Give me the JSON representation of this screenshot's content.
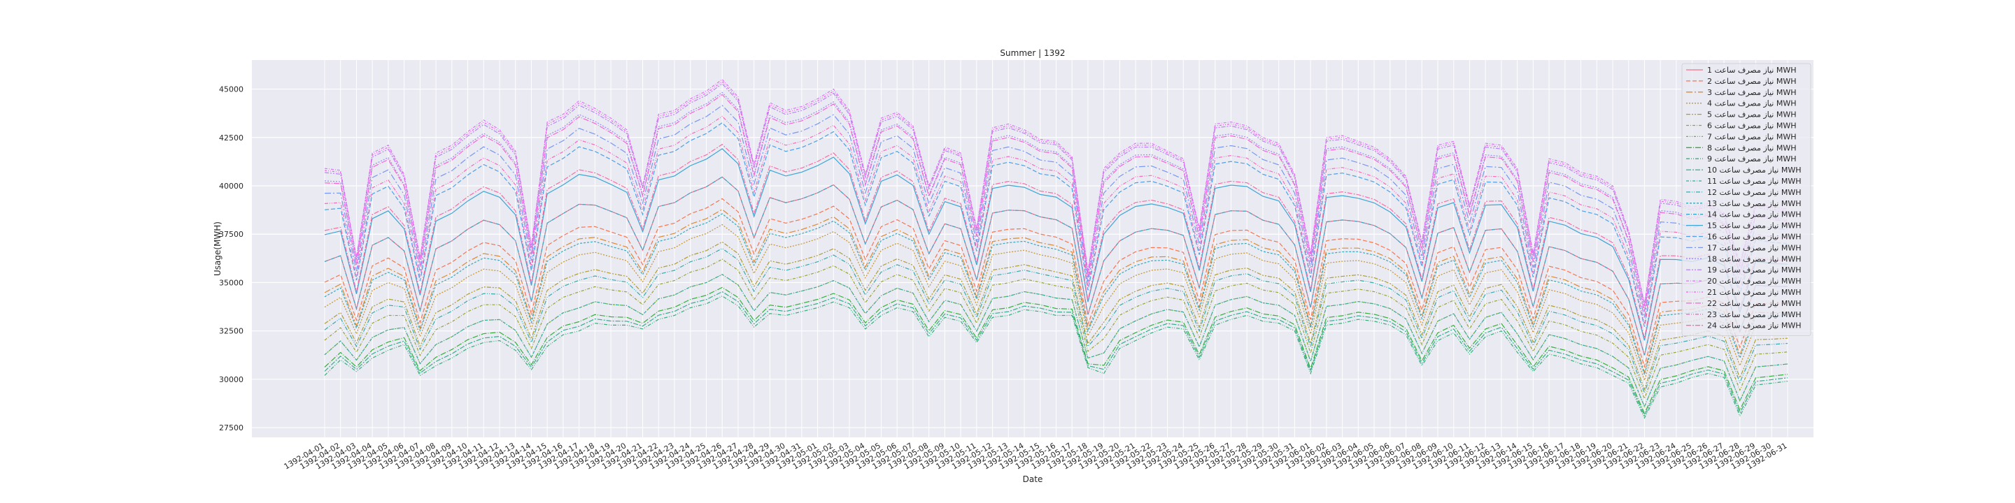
{
  "chart_data": {
    "type": "line",
    "title": "Summer | 1392",
    "xlabel": "Date",
    "ylabel": "Usage(MWH)",
    "ylim": [
      27000,
      46500
    ],
    "yticks": [
      27500,
      30000,
      32500,
      35000,
      37500,
      40000,
      42500,
      45000
    ],
    "ytick_labels": [
      "27500",
      "30000",
      "32500",
      "35000",
      "37500",
      "40000",
      "42500",
      "45000"
    ],
    "grid": true,
    "legend_position": "top-right",
    "x": [
      "1392-04-01",
      "1392-04-02",
      "1392-04-03",
      "1392-04-04",
      "1392-04-05",
      "1392-04-06",
      "1392-04-07",
      "1392-04-08",
      "1392-04-09",
      "1392-04-10",
      "1392-04-11",
      "1392-04-12",
      "1392-04-13",
      "1392-04-14",
      "1392-04-15",
      "1392-04-16",
      "1392-04-17",
      "1392-04-18",
      "1392-04-19",
      "1392-04-20",
      "1392-04-21",
      "1392-04-22",
      "1392-04-23",
      "1392-04-24",
      "1392-04-25",
      "1392-04-26",
      "1392-04-27",
      "1392-04-28",
      "1392-04-29",
      "1392-04-30",
      "1392-04-31",
      "1392-05-01",
      "1392-05-02",
      "1392-05-03",
      "1392-05-04",
      "1392-05-05",
      "1392-05-06",
      "1392-05-07",
      "1392-05-08",
      "1392-05-09",
      "1392-05-10",
      "1392-05-11",
      "1392-05-12",
      "1392-05-13",
      "1392-05-14",
      "1392-05-15",
      "1392-05-16",
      "1392-05-17",
      "1392-05-18",
      "1392-05-19",
      "1392-05-20",
      "1392-05-21",
      "1392-05-22",
      "1392-05-23",
      "1392-05-24",
      "1392-05-25",
      "1392-05-26",
      "1392-05-27",
      "1392-05-28",
      "1392-05-29",
      "1392-05-30",
      "1392-05-31",
      "1392-06-01",
      "1392-06-02",
      "1392-06-03",
      "1392-06-04",
      "1392-06-05",
      "1392-06-06",
      "1392-06-07",
      "1392-06-08",
      "1392-06-09",
      "1392-06-10",
      "1392-06-11",
      "1392-06-12",
      "1392-06-13",
      "1392-06-14",
      "1392-06-15",
      "1392-06-16",
      "1392-06-17",
      "1392-06-18",
      "1392-06-19",
      "1392-06-20",
      "1392-06-21",
      "1392-06-22",
      "1392-06-23",
      "1392-06-24",
      "1392-06-25",
      "1392-06-26",
      "1392-06-27",
      "1392-06-28",
      "1392-06-29",
      "1392-06-30",
      "1392-06-31"
    ],
    "series": [
      {
        "name": "نیاز مصرف ساعت 1 MWH",
        "color": "#f77189",
        "dash": "solid"
      },
      {
        "name": "نیاز مصرف ساعت 2 MWH",
        "color": "#f7754f",
        "dash": "6,3"
      },
      {
        "name": "نیاز مصرف ساعت 3 MWH",
        "color": "#dc8932",
        "dash": "9,3,2,3"
      },
      {
        "name": "نیاز مصرف ساعت 4 MWH",
        "color": "#c39532",
        "dash": "2,2"
      },
      {
        "name": "نیاز مصرف ساعت 5 MWH",
        "color": "#ae9d31",
        "dash": "6,2,2,2,2,2"
      },
      {
        "name": "نیاز مصرف ساعت 6 MWH",
        "color": "#97a431",
        "dash": "4,2,1,2"
      },
      {
        "name": "نیاز مصرف ساعت 7 MWH",
        "color": "#77ab31",
        "dash": "3,2,1,2,1,2"
      },
      {
        "name": "نیاز مصرف ساعت 8 MWH",
        "color": "#33b039",
        "dash": "8,2,1,2"
      },
      {
        "name": "نیاز مصرف ساعت 9 MWH",
        "color": "#35ae79",
        "dash": "5,2,1,2,1,2"
      },
      {
        "name": "نیاز مصرف ساعت 10 MWH",
        "color": "#36ad8f",
        "dash": "7,2,2,2"
      },
      {
        "name": "نیاز مصرف ساعت 11 MWH",
        "color": "#37ab9f",
        "dash": "4,2,1,2"
      },
      {
        "name": "نیاز مصرف ساعت 12 MWH",
        "color": "#38aaac",
        "dash": "6,2,1,2,1,2"
      },
      {
        "name": "نیاز مصرف ساعت 13 MWH",
        "color": "#39a9b9",
        "dash": "3,2"
      },
      {
        "name": "نیاز مصرف ساعت 14 MWH",
        "color": "#3ba7c5",
        "dash": "5,2,1,2"
      },
      {
        "name": "نیاز مصرف ساعت 15 MWH",
        "color": "#3da5d5",
        "dash": "solid"
      },
      {
        "name": "نیاز مصرف ساعت 16 MWH",
        "color": "#4ca0e8",
        "dash": "6,3"
      },
      {
        "name": "نیاز مصرف ساعت 17 MWH",
        "color": "#7897f4",
        "dash": "9,3,2,3"
      },
      {
        "name": "نیاز مصرف ساعت 18 MWH",
        "color": "#9b8ef4",
        "dash": "2,2"
      },
      {
        "name": "نیاز مصرف ساعت 19 MWH",
        "color": "#b985f4",
        "dash": "6,2,2,2,2,2"
      },
      {
        "name": "نیاز مصرف ساعت 20 MWH",
        "color": "#d678f4",
        "dash": "4,2,1,2"
      },
      {
        "name": "نیاز مصرف ساعت 21 MWH",
        "color": "#f061ef",
        "dash": "3,2,1,2,1,2"
      },
      {
        "name": "نیاز مصرف ساعت 22 MWH",
        "color": "#f566d3",
        "dash": "8,2,1,2"
      },
      {
        "name": "نیاز مصرف ساعت 23 MWH",
        "color": "#f66bbc",
        "dash": "5,2,1,2,1,2"
      },
      {
        "name": "نیاز مصرف ساعت 24 MWH",
        "color": "#f76ea6",
        "dash": "7,2,2,2"
      }
    ],
    "peak_profile": [
      40900,
      40800,
      36300,
      41700,
      42100,
      40600,
      36300,
      41700,
      42100,
      42800,
      43400,
      42900,
      41800,
      36900,
      43300,
      43700,
      44400,
      44000,
      43500,
      42900,
      40000,
      43700,
      43900,
      44500,
      44900,
      45500,
      44600,
      41100,
      44300,
      43900,
      44100,
      44500,
      45000,
      43900,
      40600,
      43500,
      43800,
      43100,
      40000,
      42000,
      41700,
      37800,
      43000,
      43200,
      42900,
      42400,
      42300,
      41500,
      35600,
      40900,
      41700,
      42200,
      42200,
      41800,
      41400,
      37800,
      43200,
      43300,
      43100,
      42500,
      42200,
      40600,
      36500,
      42500,
      42600,
      42300,
      42000,
      41400,
      40500,
      37100,
      42100,
      42300,
      39000,
      42200,
      42100,
      40900,
      36500,
      41400,
      41200,
      40700,
      40500,
      40000,
      37700,
      33900,
      39300,
      39200,
      38900,
      39100,
      38600,
      36000,
      39100,
      38900,
      38800
    ],
    "trough_profile": [
      30200,
      31000,
      30400,
      31100,
      31500,
      31800,
      30200,
      30700,
      31100,
      31600,
      31900,
      32000,
      31500,
      30500,
      31700,
      32300,
      32500,
      32900,
      32800,
      32800,
      32600,
      33100,
      33300,
      33700,
      33900,
      34300,
      33800,
      32700,
      33400,
      33300,
      33500,
      33700,
      34000,
      33700,
      32600,
      33300,
      33700,
      33500,
      32200,
      33200,
      33000,
      31900,
      33200,
      33300,
      33600,
      33500,
      33300,
      33300,
      30600,
      30300,
      31600,
      32000,
      32400,
      32700,
      32600,
      31000,
      32800,
      33100,
      33300,
      33000,
      32900,
      32500,
      30300,
      32800,
      32900,
      33100,
      33000,
      32800,
      32300,
      30700,
      32000,
      32400,
      31300,
      32200,
      32500,
      31400,
      30400,
      31300,
      31100,
      30800,
      30600,
      30200,
      29800,
      28000,
      29600,
      29800,
      30100,
      30300,
      30100,
      28100,
      29700,
      29800,
      29900
    ],
    "series_levels": [
      0.55,
      0.45,
      0.4,
      0.33,
      0.25,
      0.17,
      0.1,
      0.04,
      0.0,
      0.02,
      0.1,
      0.22,
      0.38,
      0.55,
      0.68,
      0.8,
      0.88,
      0.94,
      0.98,
      1.0,
      0.99,
      0.93,
      0.83,
      0.7
    ]
  }
}
